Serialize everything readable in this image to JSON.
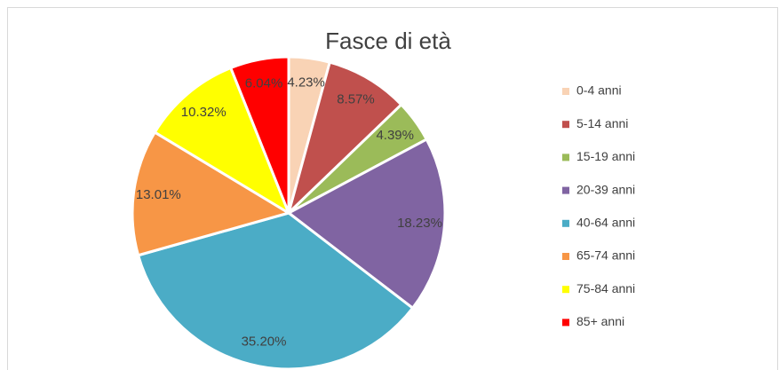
{
  "chart_data": {
    "type": "pie",
    "title": "Fasce di età",
    "categories": [
      "0-4 anni",
      "5-14 anni",
      "15-19 anni",
      "20-39 anni",
      "40-64 anni",
      "65-74 anni",
      "75-84 anni",
      "85+ anni"
    ],
    "values": [
      4.23,
      8.57,
      4.39,
      18.23,
      35.2,
      13.01,
      10.32,
      6.04
    ],
    "value_labels": [
      "4.23%",
      "8.57%",
      "4.39%",
      "18.23%",
      "35.20%",
      "13.01%",
      "10.32%",
      "6.04%"
    ],
    "colors": [
      "#f9d3b5",
      "#c0504d",
      "#9bbb59",
      "#8064a2",
      "#4bacc6",
      "#f79646",
      "#ffff00",
      "#ff0000"
    ],
    "legend": "right"
  }
}
